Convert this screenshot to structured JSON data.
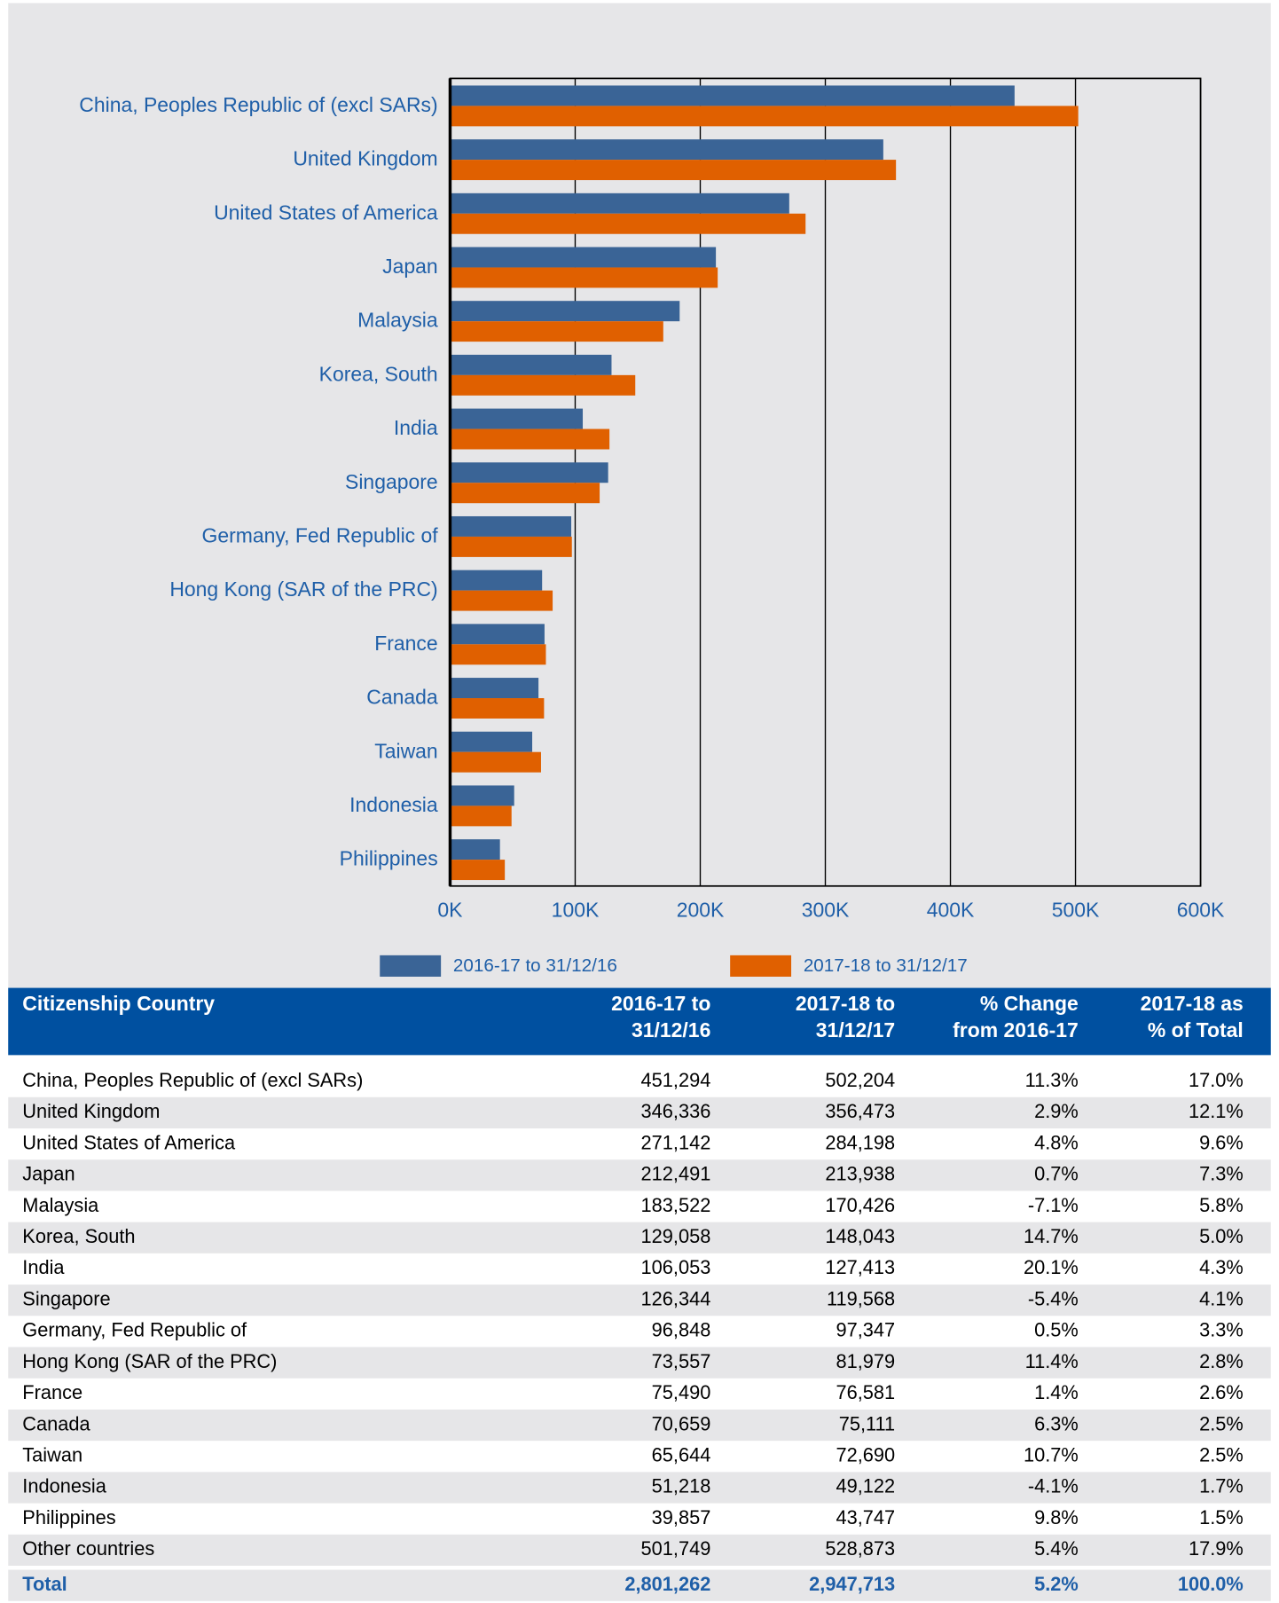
{
  "chart_data": {
    "type": "bar",
    "orientation": "horizontal",
    "categories": [
      "China, Peoples Republic of (excl SARs)",
      "United Kingdom",
      "United States of America",
      "Japan",
      "Malaysia",
      "Korea, South",
      "India",
      "Singapore",
      "Germany, Fed Republic of",
      "Hong Kong (SAR of the PRC)",
      "France",
      "Canada",
      "Taiwan",
      "Indonesia",
      "Philippines"
    ],
    "series": [
      {
        "name": "2016-17 to 31/12/16",
        "color": "#3a6496",
        "values": [
          451294,
          346336,
          271142,
          212491,
          183522,
          129058,
          106053,
          126344,
          96848,
          73557,
          75490,
          70659,
          65644,
          51218,
          39857
        ]
      },
      {
        "name": "2017-18 to 31/12/17",
        "color": "#e06000",
        "values": [
          502204,
          356473,
          284198,
          213938,
          170426,
          148043,
          127413,
          119568,
          97347,
          81979,
          76581,
          75111,
          72690,
          49122,
          43747
        ]
      }
    ],
    "xlim": [
      0,
      600000
    ],
    "xticks": [
      {
        "value": 0,
        "label": "0K"
      },
      {
        "value": 100000,
        "label": "100K"
      },
      {
        "value": 200000,
        "label": "200K"
      },
      {
        "value": 300000,
        "label": "300K"
      },
      {
        "value": 400000,
        "label": "400K"
      },
      {
        "value": 500000,
        "label": "500K"
      },
      {
        "value": 600000,
        "label": "600K"
      }
    ],
    "grid": true,
    "legend": "bottom"
  },
  "table": {
    "header": [
      [
        "Citizenship Country"
      ],
      [
        "2016-17 to",
        "31/12/16"
      ],
      [
        "2017-18 to",
        "31/12/17"
      ],
      [
        "% Change",
        "from 2016-17"
      ],
      [
        "2017-18 as",
        "% of Total"
      ]
    ],
    "rows": [
      [
        "China, Peoples Republic of (excl SARs)",
        "451,294",
        "502,204",
        "11.3%",
        "17.0%"
      ],
      [
        "United Kingdom",
        "346,336",
        "356,473",
        "2.9%",
        "12.1%"
      ],
      [
        "United States of America",
        "271,142",
        "284,198",
        "4.8%",
        "9.6%"
      ],
      [
        "Japan",
        "212,491",
        "213,938",
        "0.7%",
        "7.3%"
      ],
      [
        "Malaysia",
        "183,522",
        "170,426",
        "-7.1%",
        "5.8%"
      ],
      [
        "Korea, South",
        "129,058",
        "148,043",
        "14.7%",
        "5.0%"
      ],
      [
        "India",
        "106,053",
        "127,413",
        "20.1%",
        "4.3%"
      ],
      [
        "Singapore",
        "126,344",
        "119,568",
        "-5.4%",
        "4.1%"
      ],
      [
        "Germany, Fed Republic of",
        "96,848",
        "97,347",
        "0.5%",
        "3.3%"
      ],
      [
        "Hong Kong (SAR of the PRC)",
        "73,557",
        "81,979",
        "11.4%",
        "2.8%"
      ],
      [
        "France",
        "75,490",
        "76,581",
        "1.4%",
        "2.6%"
      ],
      [
        "Canada",
        "70,659",
        "75,111",
        "6.3%",
        "2.5%"
      ],
      [
        "Taiwan",
        "65,644",
        "72,690",
        "10.7%",
        "2.5%"
      ],
      [
        "Indonesia",
        "51,218",
        "49,122",
        "-4.1%",
        "1.7%"
      ],
      [
        "Philippines",
        "39,857",
        "43,747",
        "9.8%",
        "1.5%"
      ],
      [
        "Other countries",
        "501,749",
        "528,873",
        "5.4%",
        "17.9%"
      ]
    ],
    "total": [
      "Total",
      "2,801,262",
      "2,947,713",
      "5.2%",
      "100.0%"
    ]
  }
}
